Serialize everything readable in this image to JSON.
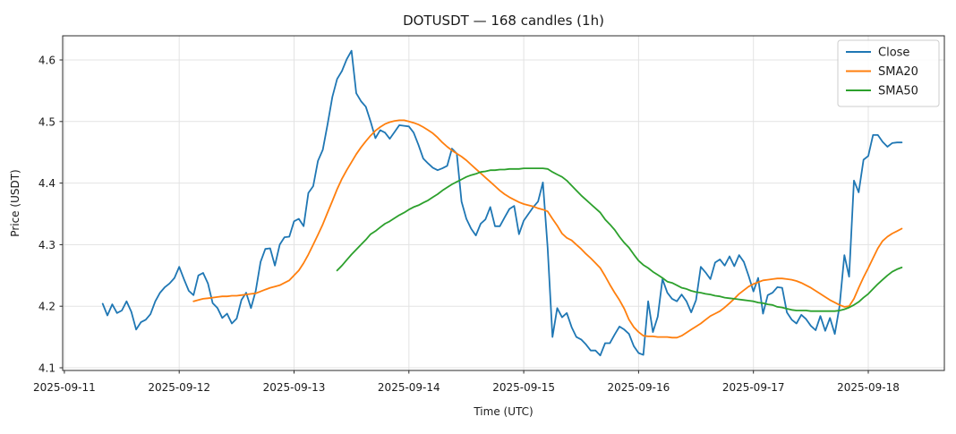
{
  "chart_data": {
    "type": "line",
    "title": "DOTUSDT — 168 candles (1h)",
    "xlabel": "Time (UTC)",
    "ylabel": "Price (USDT)",
    "symbol": "DOTUSDT",
    "candle_count": 168,
    "interval": "1h",
    "grid": true,
    "legend_position": "upper right",
    "x_tick_labels": [
      "2025-09-11",
      "2025-09-12",
      "2025-09-13",
      "2025-09-14",
      "2025-09-15",
      "2025-09-16",
      "2025-09-17",
      "2025-09-18"
    ],
    "y_tick_values": [
      4.1,
      4.2,
      4.3,
      4.4,
      4.5,
      4.6
    ],
    "ylim": [
      4.095,
      4.639
    ],
    "first_candle_hour_offset": 8,
    "series": [
      {
        "name": "Close",
        "color": "#1f77b4",
        "start_index": 0,
        "values": [
          4.204,
          4.185,
          4.203,
          4.189,
          4.193,
          4.208,
          4.191,
          4.162,
          4.174,
          4.178,
          4.187,
          4.208,
          4.222,
          4.231,
          4.237,
          4.246,
          4.264,
          4.244,
          4.225,
          4.218,
          4.25,
          4.254,
          4.237,
          4.205,
          4.197,
          4.181,
          4.188,
          4.172,
          4.18,
          4.21,
          4.222,
          4.197,
          4.225,
          4.272,
          4.293,
          4.294,
          4.266,
          4.3,
          4.312,
          4.313,
          4.338,
          4.342,
          4.33,
          4.384,
          4.395,
          4.436,
          4.454,
          4.495,
          4.54,
          4.569,
          4.582,
          4.601,
          4.615,
          4.546,
          4.533,
          4.524,
          4.5,
          4.473,
          4.486,
          4.482,
          4.472,
          4.483,
          4.494,
          4.493,
          4.492,
          4.482,
          4.462,
          4.44,
          4.432,
          4.425,
          4.421,
          4.424,
          4.428,
          4.456,
          4.448,
          4.37,
          4.342,
          4.326,
          4.315,
          4.334,
          4.341,
          4.361,
          4.33,
          4.33,
          4.344,
          4.358,
          4.363,
          4.317,
          4.339,
          4.35,
          4.361,
          4.37,
          4.401,
          4.295,
          4.15,
          4.197,
          4.182,
          4.189,
          4.166,
          4.15,
          4.146,
          4.138,
          4.128,
          4.128,
          4.12,
          4.14,
          4.14,
          4.154,
          4.167,
          4.162,
          4.155,
          4.135,
          4.124,
          4.121,
          4.208,
          4.158,
          4.183,
          4.244,
          4.222,
          4.212,
          4.208,
          4.219,
          4.208,
          4.19,
          4.21,
          4.264,
          4.255,
          4.244,
          4.271,
          4.276,
          4.266,
          4.281,
          4.265,
          4.283,
          4.272,
          4.249,
          4.224,
          4.246,
          4.188,
          4.218,
          4.222,
          4.231,
          4.23,
          4.19,
          4.178,
          4.172,
          4.186,
          4.179,
          4.168,
          4.161,
          4.184,
          4.16,
          4.181,
          4.155,
          4.2,
          4.283,
          4.248,
          4.404,
          4.385,
          4.438,
          4.444,
          4.478,
          4.478,
          4.467,
          4.459,
          4.465,
          4.466,
          4.466
        ]
      },
      {
        "name": "SMA20",
        "color": "#ff7f0e",
        "start_index": 19,
        "values": [
          4.208,
          4.21,
          4.212,
          4.213,
          4.214,
          4.215,
          4.216,
          4.216,
          4.217,
          4.217,
          4.218,
          4.219,
          4.22,
          4.221,
          4.224,
          4.227,
          4.23,
          4.232,
          4.234,
          4.238,
          4.242,
          4.25,
          4.258,
          4.27,
          4.284,
          4.3,
          4.316,
          4.333,
          4.352,
          4.371,
          4.39,
          4.407,
          4.421,
          4.434,
          4.447,
          4.458,
          4.468,
          4.477,
          4.485,
          4.491,
          4.496,
          4.499,
          4.501,
          4.502,
          4.502,
          4.5,
          4.498,
          4.495,
          4.491,
          4.486,
          4.481,
          4.474,
          4.466,
          4.459,
          4.453,
          4.448,
          4.443,
          4.437,
          4.43,
          4.423,
          4.416,
          4.409,
          4.402,
          4.395,
          4.388,
          4.382,
          4.377,
          4.373,
          4.369,
          4.366,
          4.364,
          4.362,
          4.359,
          4.357,
          4.354,
          4.342,
          4.331,
          4.318,
          4.311,
          4.307,
          4.3,
          4.293,
          4.285,
          4.278,
          4.27,
          4.262,
          4.249,
          4.235,
          4.222,
          4.21,
          4.196,
          4.178,
          4.166,
          4.158,
          4.152,
          4.151,
          4.151,
          4.15,
          4.15,
          4.15,
          4.149,
          4.149,
          4.152,
          4.157,
          4.162,
          4.167,
          4.172,
          4.178,
          4.184,
          4.188,
          4.192,
          4.198,
          4.205,
          4.212,
          4.22,
          4.226,
          4.232,
          4.236,
          4.239,
          4.242,
          4.243,
          4.244,
          4.245,
          4.245,
          4.244,
          4.243,
          4.241,
          4.238,
          4.234,
          4.23,
          4.225,
          4.22,
          4.215,
          4.21,
          4.206,
          4.202,
          4.199,
          4.2,
          4.212,
          4.23,
          4.247,
          4.262,
          4.278,
          4.294,
          4.306,
          4.313,
          4.318,
          4.322,
          4.326
        ]
      },
      {
        "name": "SMA50",
        "color": "#2ca02c",
        "start_index": 49,
        "values": [
          4.258,
          4.266,
          4.275,
          4.284,
          4.292,
          4.3,
          4.308,
          4.317,
          4.322,
          4.328,
          4.334,
          4.338,
          4.343,
          4.348,
          4.352,
          4.357,
          4.361,
          4.364,
          4.368,
          4.372,
          4.377,
          4.382,
          4.388,
          4.393,
          4.398,
          4.402,
          4.406,
          4.41,
          4.413,
          4.415,
          4.418,
          4.419,
          4.421,
          4.421,
          4.422,
          4.422,
          4.423,
          4.423,
          4.423,
          4.424,
          4.424,
          4.424,
          4.424,
          4.424,
          4.423,
          4.418,
          4.414,
          4.41,
          4.404,
          4.396,
          4.388,
          4.38,
          4.373,
          4.366,
          4.359,
          4.352,
          4.341,
          4.333,
          4.324,
          4.313,
          4.303,
          4.295,
          4.284,
          4.274,
          4.267,
          4.262,
          4.256,
          4.251,
          4.246,
          4.24,
          4.238,
          4.234,
          4.23,
          4.228,
          4.225,
          4.223,
          4.222,
          4.22,
          4.219,
          4.217,
          4.216,
          4.214,
          4.213,
          4.212,
          4.211,
          4.21,
          4.209,
          4.208,
          4.206,
          4.205,
          4.203,
          4.202,
          4.199,
          4.198,
          4.196,
          4.194,
          4.193,
          4.193,
          4.193,
          4.192,
          4.192,
          4.192,
          4.192,
          4.192,
          4.192,
          4.193,
          4.195,
          4.198,
          4.202,
          4.207,
          4.214,
          4.22,
          4.228,
          4.236,
          4.243,
          4.25,
          4.256,
          4.26,
          4.263
        ]
      }
    ]
  }
}
